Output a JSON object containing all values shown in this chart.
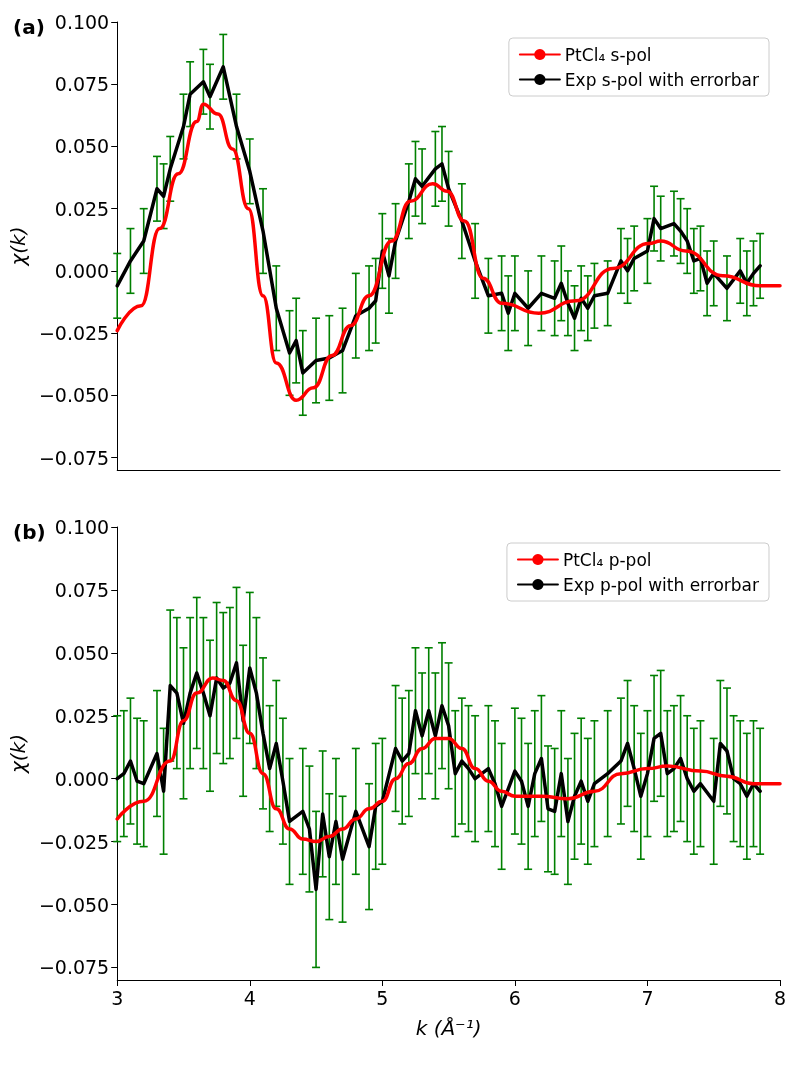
{
  "chart_data": [
    {
      "type": "line",
      "title": "(a)",
      "ylabel": "χ(k)",
      "xlim": [
        3,
        8
      ],
      "ylim": [
        -0.08,
        0.1
      ],
      "xticks": [
        3,
        4,
        5,
        6,
        7,
        8
      ],
      "yticks": [
        {
          "value": -0.075,
          "label": "−0.075"
        },
        {
          "value": -0.05,
          "label": "−0.050"
        },
        {
          "value": -0.025,
          "label": "−0.025"
        },
        {
          "value": 0,
          "label": "0.000"
        },
        {
          "value": 0.025,
          "label": "0.025"
        },
        {
          "value": 0.05,
          "label": "0.050"
        },
        {
          "value": 0.075,
          "label": "0.075"
        },
        {
          "value": 0.1,
          "label": "0.100"
        }
      ],
      "tick_labels": "y",
      "grid": false,
      "legend": "top right",
      "marker": "none",
      "line_style": "solid",
      "series": [
        {
          "name": "PtCl₄ s-pol",
          "color": "#ff0000",
          "x": [
            3.0,
            3.18,
            3.32,
            3.46,
            3.6,
            3.65,
            3.76,
            3.87,
            3.99,
            4.1,
            4.2,
            4.35,
            4.48,
            4.62,
            4.76,
            4.9,
            5.07,
            5.21,
            5.38,
            5.49,
            5.62,
            5.76,
            5.9,
            6.18,
            6.46,
            6.74,
            7.01,
            7.1,
            7.29,
            7.57,
            7.85,
            8.0
          ],
          "values": [
            -0.024,
            -0.014,
            0.017,
            0.039,
            0.06,
            0.067,
            0.063,
            0.049,
            0.025,
            -0.01,
            -0.037,
            -0.052,
            -0.047,
            -0.034,
            -0.022,
            -0.01,
            0.012,
            0.028,
            0.035,
            0.032,
            0.02,
            -0.003,
            -0.013,
            -0.017,
            -0.012,
            0.001,
            0.011,
            0.012,
            0.008,
            -0.002,
            -0.006,
            -0.006
          ]
        },
        {
          "name": "Exp s-pol with errorbar",
          "color": "#000000",
          "x": [
            3.0,
            3.1,
            3.2,
            3.3,
            3.35,
            3.4,
            3.5,
            3.55,
            3.65,
            3.7,
            3.8,
            3.9,
            4.0,
            4.1,
            4.2,
            4.3,
            4.35,
            4.4,
            4.5,
            4.6,
            4.7,
            4.8,
            4.9,
            4.95,
            5.0,
            5.05,
            5.1,
            5.2,
            5.25,
            5.3,
            5.4,
            5.45,
            5.5,
            5.6,
            5.7,
            5.8,
            5.9,
            5.95,
            6.0,
            6.1,
            6.2,
            6.3,
            6.35,
            6.4,
            6.45,
            6.5,
            6.55,
            6.6,
            6.7,
            6.8,
            6.85,
            6.9,
            7.0,
            7.05,
            7.1,
            7.2,
            7.25,
            7.3,
            7.35,
            7.4,
            7.45,
            7.5,
            7.6,
            7.7,
            7.75,
            7.8,
            7.85
          ],
          "values": [
            -0.006,
            0.004,
            0.012,
            0.033,
            0.03,
            0.041,
            0.058,
            0.071,
            0.076,
            0.07,
            0.082,
            0.058,
            0.04,
            0.016,
            -0.015,
            -0.033,
            -0.028,
            -0.041,
            -0.036,
            -0.035,
            -0.032,
            -0.018,
            -0.015,
            -0.012,
            0.008,
            -0.002,
            0.012,
            0.028,
            0.037,
            0.034,
            0.041,
            0.043,
            0.033,
            0.02,
            0.004,
            -0.01,
            -0.009,
            -0.017,
            -0.009,
            -0.015,
            -0.009,
            -0.011,
            -0.005,
            -0.013,
            -0.019,
            -0.011,
            -0.015,
            -0.01,
            -0.009,
            0.004,
            0.0,
            0.005,
            0.008,
            0.021,
            0.017,
            0.019,
            0.016,
            0.012,
            0.004,
            0.005,
            -0.005,
            -0.001,
            -0.007,
            0.0,
            -0.005,
            -0.001,
            0.002
          ],
          "errors": [
            0.013,
            0.013,
            0.013,
            0.013,
            0.013,
            0.013,
            0.013,
            0.013,
            0.013,
            0.013,
            0.013,
            0.013,
            0.013,
            0.017,
            0.017,
            0.017,
            0.017,
            0.017,
            0.017,
            0.017,
            0.017,
            0.017,
            0.017,
            0.017,
            0.015,
            0.015,
            0.015,
            0.015,
            0.015,
            0.015,
            0.015,
            0.015,
            0.015,
            0.015,
            0.015,
            0.015,
            0.015,
            0.015,
            0.015,
            0.015,
            0.015,
            0.015,
            0.015,
            0.013,
            0.013,
            0.013,
            0.013,
            0.013,
            0.013,
            0.013,
            0.013,
            0.013,
            0.013,
            0.013,
            0.013,
            0.013,
            0.013,
            0.013,
            0.013,
            0.013,
            0.013,
            0.013,
            0.013,
            0.013,
            0.013,
            0.013,
            0.013
          ]
        }
      ]
    },
    {
      "type": "line",
      "title": "(b)",
      "xlabel": "k (Å⁻¹)",
      "ylabel": "χ(k)",
      "xlim": [
        3,
        8
      ],
      "ylim": [
        -0.08,
        0.1
      ],
      "xticks": [
        3,
        4,
        5,
        6,
        7,
        8
      ],
      "yticks": [
        {
          "value": -0.075,
          "label": "−0.075"
        },
        {
          "value": -0.05,
          "label": "−0.050"
        },
        {
          "value": -0.025,
          "label": "−0.025"
        },
        {
          "value": 0,
          "label": "0.000"
        },
        {
          "value": 0.025,
          "label": "0.025"
        },
        {
          "value": 0.05,
          "label": "0.050"
        },
        {
          "value": 0.075,
          "label": "0.075"
        },
        {
          "value": 0.1,
          "label": "0.100"
        }
      ],
      "grid": false,
      "legend": "top right",
      "marker": "none",
      "line_style": "solid",
      "series": [
        {
          "name": "PtCl₄ p-pol",
          "color": "#ff0000",
          "x": [
            3.0,
            3.2,
            3.4,
            3.5,
            3.6,
            3.72,
            3.8,
            3.9,
            4.0,
            4.1,
            4.2,
            4.3,
            4.4,
            4.5,
            4.6,
            4.7,
            4.8,
            4.9,
            5.0,
            5.1,
            5.2,
            5.3,
            5.4,
            5.5,
            5.6,
            5.7,
            5.8,
            5.9,
            6.0,
            6.2,
            6.4,
            6.6,
            6.8,
            7.0,
            7.15,
            7.4,
            7.6,
            7.8,
            8.0
          ],
          "values": [
            -0.016,
            -0.009,
            0.007,
            0.023,
            0.034,
            0.04,
            0.039,
            0.031,
            0.018,
            0.002,
            -0.012,
            -0.02,
            -0.024,
            -0.025,
            -0.023,
            -0.02,
            -0.016,
            -0.012,
            -0.009,
            0.0,
            0.006,
            0.012,
            0.016,
            0.016,
            0.012,
            0.004,
            -0.001,
            -0.005,
            -0.007,
            -0.007,
            -0.008,
            -0.005,
            0.002,
            0.004,
            0.005,
            0.003,
            0.001,
            -0.002,
            -0.002
          ]
        },
        {
          "name": "Exp p-pol with errorbar",
          "color": "#000000",
          "x": [
            3.0,
            3.05,
            3.1,
            3.15,
            3.2,
            3.3,
            3.35,
            3.4,
            3.45,
            3.5,
            3.55,
            3.6,
            3.65,
            3.7,
            3.75,
            3.8,
            3.85,
            3.9,
            3.95,
            4.0,
            4.05,
            4.1,
            4.15,
            4.2,
            4.25,
            4.3,
            4.4,
            4.45,
            4.5,
            4.55,
            4.6,
            4.65,
            4.7,
            4.8,
            4.9,
            4.95,
            5.0,
            5.1,
            5.15,
            5.2,
            5.25,
            5.3,
            5.35,
            5.4,
            5.45,
            5.5,
            5.55,
            5.6,
            5.65,
            5.7,
            5.8,
            5.85,
            5.9,
            6.0,
            6.05,
            6.1,
            6.15,
            6.2,
            6.25,
            6.3,
            6.35,
            6.4,
            6.45,
            6.5,
            6.55,
            6.6,
            6.7,
            6.8,
            6.85,
            6.9,
            6.95,
            7.0,
            7.05,
            7.1,
            7.15,
            7.2,
            7.25,
            7.3,
            7.35,
            7.4,
            7.5,
            7.55,
            7.6,
            7.65,
            7.7,
            7.75,
            7.8,
            7.85
          ],
          "values": [
            0.0,
            0.002,
            0.007,
            -0.001,
            -0.002,
            0.01,
            -0.005,
            0.037,
            0.034,
            0.022,
            0.034,
            0.042,
            0.034,
            0.025,
            0.04,
            0.036,
            0.038,
            0.046,
            0.023,
            0.044,
            0.034,
            0.018,
            0.004,
            0.014,
            -0.001,
            -0.017,
            -0.013,
            -0.02,
            -0.044,
            -0.014,
            -0.031,
            -0.017,
            -0.032,
            -0.013,
            -0.027,
            -0.011,
            -0.009,
            0.012,
            0.007,
            0.01,
            0.027,
            0.017,
            0.027,
            0.017,
            0.029,
            0.021,
            0.002,
            0.007,
            0.004,
            0.0,
            0.004,
            -0.002,
            -0.011,
            0.003,
            -0.001,
            -0.011,
            0.002,
            0.008,
            -0.012,
            -0.013,
            0.002,
            -0.017,
            -0.007,
            -0.001,
            -0.009,
            -0.002,
            0.002,
            0.007,
            0.014,
            0.004,
            -0.007,
            0.002,
            0.016,
            0.018,
            0.002,
            0.004,
            0.008,
            0.0,
            -0.005,
            -0.002,
            -0.009,
            0.014,
            0.011,
            0.0,
            -0.002,
            -0.007,
            -0.002,
            -0.005
          ],
          "errors": [
            0.025,
            0.025,
            0.025,
            0.025,
            0.025,
            0.025,
            0.025,
            0.03,
            0.03,
            0.03,
            0.03,
            0.03,
            0.03,
            0.03,
            0.03,
            0.03,
            0.03,
            0.03,
            0.03,
            0.03,
            0.03,
            0.03,
            0.025,
            0.025,
            0.025,
            0.025,
            0.025,
            0.025,
            0.031,
            0.025,
            0.025,
            0.025,
            0.025,
            0.025,
            0.025,
            0.025,
            0.025,
            0.025,
            0.025,
            0.025,
            0.025,
            0.025,
            0.025,
            0.025,
            0.025,
            0.025,
            0.025,
            0.025,
            0.025,
            0.025,
            0.025,
            0.025,
            0.025,
            0.025,
            0.025,
            0.025,
            0.025,
            0.025,
            0.025,
            0.025,
            0.025,
            0.025,
            0.025,
            0.025,
            0.025,
            0.025,
            0.025,
            0.025,
            0.025,
            0.025,
            0.025,
            0.025,
            0.025,
            0.025,
            0.025,
            0.025,
            0.025,
            0.025,
            0.025,
            0.025,
            0.025,
            0.025,
            0.025,
            0.025,
            0.025,
            0.025,
            0.025,
            0.025
          ]
        }
      ]
    }
  ]
}
